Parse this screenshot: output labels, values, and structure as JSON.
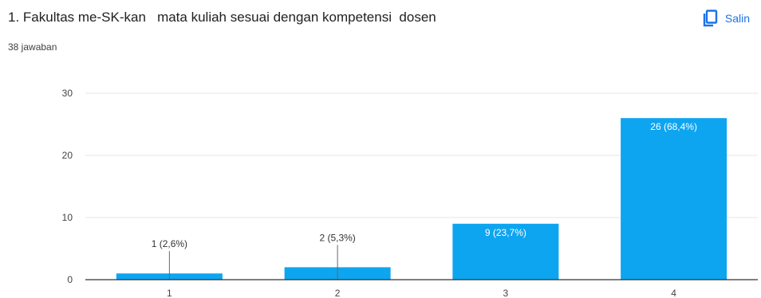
{
  "question": {
    "title": "1. Fakultas me-SK-kan   mata kuliah sesuai dengan kompetensi  dosen",
    "response_count": "38 jawaban"
  },
  "copy_button": {
    "label": "Salin",
    "icon": "copy-icon"
  },
  "colors": {
    "bar": "#0ea5f0",
    "accent": "#1a73e8",
    "grid": "#e6e6e6",
    "axis": "#333333"
  },
  "chart_data": {
    "type": "bar",
    "categories": [
      "1",
      "2",
      "3",
      "4"
    ],
    "values": [
      1,
      2,
      9,
      26
    ],
    "data_labels": [
      "1 (2,6%)",
      "2 (5,3%)",
      "9 (23,7%)",
      "26 (68,4%)"
    ],
    "yticks": [
      "0",
      "10",
      "20",
      "30"
    ],
    "ylim": [
      0,
      30
    ],
    "grid": true
  }
}
